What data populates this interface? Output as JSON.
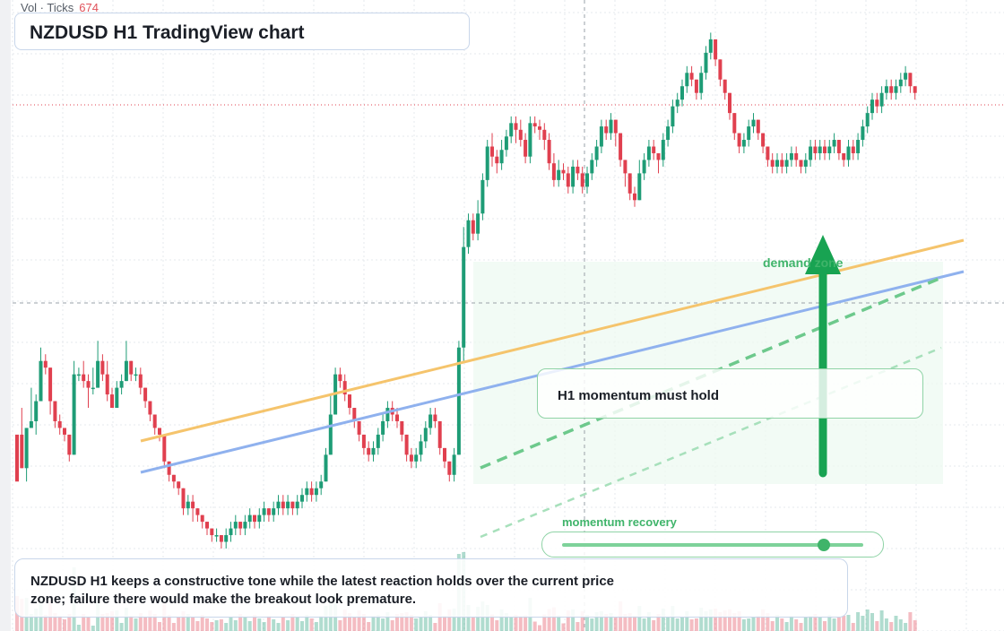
{
  "header": {
    "title": "NZDUSD H1 TradingView chart"
  },
  "volume": {
    "label": "Vol · Ticks",
    "value": "674"
  },
  "annotations": {
    "callout": "H1 momentum must hold",
    "demand_zone": "demand zone",
    "recovery_label": "momentum recovery",
    "recovery_level": 0.87
  },
  "note": "NZDUSD H1 keeps a constructive tone while the latest reaction holds over the current price zone; failure there would make the breakout look premature.",
  "colors": {
    "bull": "#1e9c76",
    "bear": "#e0404f",
    "accent_green": "#3fb46a",
    "trend_orange": "#f5c46c",
    "trend_blue": "#8fb1ee",
    "zone_fill": "#eefaf2"
  },
  "chart_data": {
    "type": "candlestick",
    "symbol": "NZDUSD",
    "timeframe": "H1",
    "candles": [
      [
        34,
        20,
        34,
        34
      ],
      [
        34,
        24,
        42,
        24
      ],
      [
        24,
        36,
        36,
        20
      ],
      [
        36,
        38,
        48,
        36
      ],
      [
        38,
        44,
        46,
        34
      ],
      [
        44,
        56,
        60,
        44
      ],
      [
        56,
        54,
        58,
        52
      ],
      [
        54,
        44,
        54,
        40
      ],
      [
        44,
        38,
        44,
        36
      ],
      [
        38,
        36,
        40,
        34
      ],
      [
        36,
        34,
        36,
        32
      ],
      [
        34,
        28,
        34,
        26
      ],
      [
        28,
        52,
        56,
        28
      ],
      [
        52,
        52,
        54,
        50
      ],
      [
        52,
        50,
        56,
        48
      ],
      [
        50,
        48,
        52,
        42
      ],
      [
        48,
        48,
        54,
        46
      ],
      [
        48,
        56,
        62,
        48
      ],
      [
        56,
        52,
        58,
        50
      ],
      [
        52,
        46,
        56,
        44
      ],
      [
        46,
        42,
        48,
        44
      ],
      [
        42,
        48,
        50,
        42
      ],
      [
        48,
        50,
        52,
        46
      ],
      [
        50,
        56,
        62,
        50
      ],
      [
        56,
        52,
        56,
        50
      ],
      [
        52,
        52,
        54,
        50
      ],
      [
        52,
        48,
        54,
        46
      ],
      [
        48,
        44,
        48,
        42
      ],
      [
        44,
        40,
        44,
        38
      ],
      [
        40,
        36,
        40,
        34
      ],
      [
        36,
        34,
        36,
        32
      ],
      [
        34,
        26,
        34,
        24
      ],
      [
        26,
        22,
        26,
        20
      ],
      [
        22,
        20,
        22,
        18
      ],
      [
        20,
        18,
        20,
        16
      ],
      [
        18,
        12,
        18,
        10
      ],
      [
        12,
        14,
        16,
        10
      ],
      [
        14,
        12,
        16,
        8
      ],
      [
        12,
        10,
        12,
        8
      ],
      [
        10,
        8,
        10,
        6
      ],
      [
        8,
        6,
        8,
        4
      ],
      [
        6,
        4,
        6,
        2
      ],
      [
        4,
        4,
        6,
        2
      ],
      [
        4,
        2,
        4,
        0
      ],
      [
        2,
        4,
        6,
        0
      ],
      [
        4,
        6,
        8,
        2
      ],
      [
        6,
        8,
        10,
        4
      ],
      [
        8,
        6,
        8,
        4
      ],
      [
        6,
        8,
        10,
        4
      ],
      [
        8,
        10,
        12,
        6
      ],
      [
        10,
        8,
        10,
        6
      ],
      [
        8,
        10,
        12,
        6
      ],
      [
        10,
        12,
        14,
        8
      ],
      [
        12,
        10,
        12,
        8
      ],
      [
        10,
        12,
        14,
        8
      ],
      [
        12,
        14,
        16,
        10
      ],
      [
        14,
        12,
        16,
        10
      ],
      [
        12,
        14,
        16,
        10
      ],
      [
        14,
        12,
        14,
        10
      ],
      [
        12,
        14,
        16,
        10
      ],
      [
        14,
        16,
        18,
        12
      ],
      [
        16,
        18,
        20,
        14
      ],
      [
        18,
        16,
        20,
        14
      ],
      [
        16,
        18,
        20,
        14
      ],
      [
        18,
        20,
        22,
        16
      ],
      [
        20,
        28,
        30,
        20
      ],
      [
        28,
        40,
        46,
        28
      ],
      [
        40,
        52,
        54,
        40
      ],
      [
        52,
        50,
        54,
        48
      ],
      [
        50,
        46,
        52,
        44
      ],
      [
        46,
        42,
        46,
        40
      ],
      [
        42,
        38,
        42,
        36
      ],
      [
        38,
        34,
        38,
        32
      ],
      [
        34,
        30,
        34,
        28
      ],
      [
        30,
        28,
        32,
        26
      ],
      [
        28,
        30,
        32,
        26
      ],
      [
        30,
        34,
        36,
        28
      ],
      [
        34,
        38,
        40,
        32
      ],
      [
        38,
        42,
        44,
        36
      ],
      [
        42,
        40,
        44,
        38
      ],
      [
        40,
        38,
        42,
        36
      ],
      [
        38,
        34,
        38,
        32
      ],
      [
        34,
        28,
        34,
        26
      ],
      [
        28,
        26,
        30,
        24
      ],
      [
        26,
        28,
        30,
        24
      ],
      [
        28,
        32,
        34,
        26
      ],
      [
        32,
        36,
        38,
        30
      ],
      [
        36,
        40,
        42,
        34
      ],
      [
        40,
        38,
        42,
        36
      ],
      [
        38,
        30,
        38,
        28
      ],
      [
        30,
        26,
        30,
        24
      ],
      [
        26,
        22,
        26,
        20
      ],
      [
        22,
        28,
        30,
        20
      ],
      [
        28,
        60,
        62,
        28
      ],
      [
        60,
        90,
        96,
        56
      ],
      [
        90,
        98,
        100,
        88
      ],
      [
        98,
        94,
        100,
        92
      ],
      [
        94,
        100,
        104,
        92
      ],
      [
        100,
        110,
        112,
        98
      ],
      [
        110,
        120,
        122,
        108
      ],
      [
        120,
        117,
        124,
        114
      ],
      [
        117,
        115,
        119,
        112
      ],
      [
        115,
        119,
        122,
        113
      ],
      [
        119,
        123,
        125,
        117
      ],
      [
        123,
        127,
        129,
        121
      ],
      [
        127,
        125,
        129,
        121
      ],
      [
        125,
        122,
        128,
        120
      ],
      [
        122,
        117,
        124,
        115
      ],
      [
        117,
        127,
        129,
        115
      ],
      [
        127,
        126,
        129,
        124
      ],
      [
        126,
        125,
        128,
        122
      ],
      [
        125,
        122,
        127,
        119
      ],
      [
        122,
        115,
        124,
        113
      ],
      [
        115,
        110,
        118,
        108
      ],
      [
        110,
        113,
        116,
        108
      ],
      [
        113,
        112,
        115,
        110
      ],
      [
        112,
        108,
        114,
        106
      ],
      [
        108,
        114,
        116,
        106
      ],
      [
        114,
        112,
        116,
        110
      ],
      [
        112,
        108,
        114,
        106
      ],
      [
        108,
        112,
        114,
        106
      ],
      [
        112,
        116,
        118,
        110
      ],
      [
        116,
        120,
        122,
        114
      ],
      [
        120,
        126,
        128,
        118
      ],
      [
        126,
        124,
        128,
        122
      ],
      [
        124,
        128,
        130,
        122
      ],
      [
        128,
        124,
        128,
        120
      ],
      [
        124,
        116,
        124,
        114
      ],
      [
        116,
        112,
        116,
        108
      ],
      [
        112,
        106,
        112,
        104
      ],
      [
        106,
        104,
        108,
        102
      ],
      [
        104,
        112,
        116,
        104
      ],
      [
        112,
        116,
        118,
        110
      ],
      [
        116,
        120,
        122,
        114
      ],
      [
        120,
        118,
        122,
        116
      ],
      [
        118,
        116,
        118,
        112
      ],
      [
        116,
        122,
        124,
        114
      ],
      [
        122,
        126,
        128,
        120
      ],
      [
        126,
        132,
        134,
        124
      ],
      [
        132,
        134,
        136,
        130
      ],
      [
        134,
        138,
        140,
        132
      ],
      [
        138,
        142,
        144,
        136
      ],
      [
        142,
        140,
        144,
        138
      ],
      [
        140,
        136,
        140,
        134
      ],
      [
        136,
        142,
        144,
        134
      ],
      [
        142,
        148,
        150,
        140
      ],
      [
        148,
        152,
        154,
        146
      ],
      [
        152,
        146,
        152,
        144
      ],
      [
        146,
        140,
        146,
        138
      ],
      [
        140,
        136,
        140,
        134
      ],
      [
        136,
        130,
        136,
        128
      ],
      [
        130,
        124,
        130,
        122
      ],
      [
        124,
        120,
        124,
        118
      ],
      [
        120,
        122,
        124,
        118
      ],
      [
        122,
        126,
        128,
        120
      ],
      [
        126,
        128,
        130,
        124
      ],
      [
        128,
        124,
        128,
        122
      ],
      [
        124,
        120,
        124,
        118
      ],
      [
        120,
        116,
        120,
        114
      ],
      [
        116,
        114,
        118,
        112
      ],
      [
        114,
        116,
        118,
        112
      ],
      [
        116,
        114,
        118,
        112
      ],
      [
        114,
        116,
        118,
        112
      ],
      [
        116,
        118,
        120,
        114
      ],
      [
        118,
        116,
        120,
        114
      ],
      [
        116,
        114,
        116,
        112
      ],
      [
        114,
        116,
        118,
        112
      ],
      [
        116,
        120,
        122,
        114
      ],
      [
        120,
        118,
        122,
        116
      ],
      [
        118,
        120,
        122,
        116
      ],
      [
        120,
        118,
        122,
        116
      ],
      [
        118,
        120,
        122,
        116
      ],
      [
        120,
        122,
        124,
        118
      ],
      [
        122,
        118,
        122,
        116
      ],
      [
        118,
        116,
        118,
        114
      ],
      [
        116,
        120,
        122,
        114
      ],
      [
        120,
        118,
        122,
        116
      ],
      [
        118,
        122,
        124,
        116
      ],
      [
        122,
        126,
        128,
        120
      ],
      [
        126,
        130,
        132,
        124
      ],
      [
        130,
        134,
        136,
        128
      ],
      [
        134,
        132,
        136,
        130
      ],
      [
        132,
        136,
        138,
        130
      ],
      [
        136,
        138,
        140,
        134
      ],
      [
        138,
        136,
        140,
        134
      ],
      [
        136,
        138,
        140,
        134
      ],
      [
        138,
        140,
        142,
        136
      ],
      [
        140,
        142,
        144,
        138
      ],
      [
        142,
        138,
        142,
        136
      ],
      [
        138,
        136,
        138,
        134
      ]
    ]
  }
}
